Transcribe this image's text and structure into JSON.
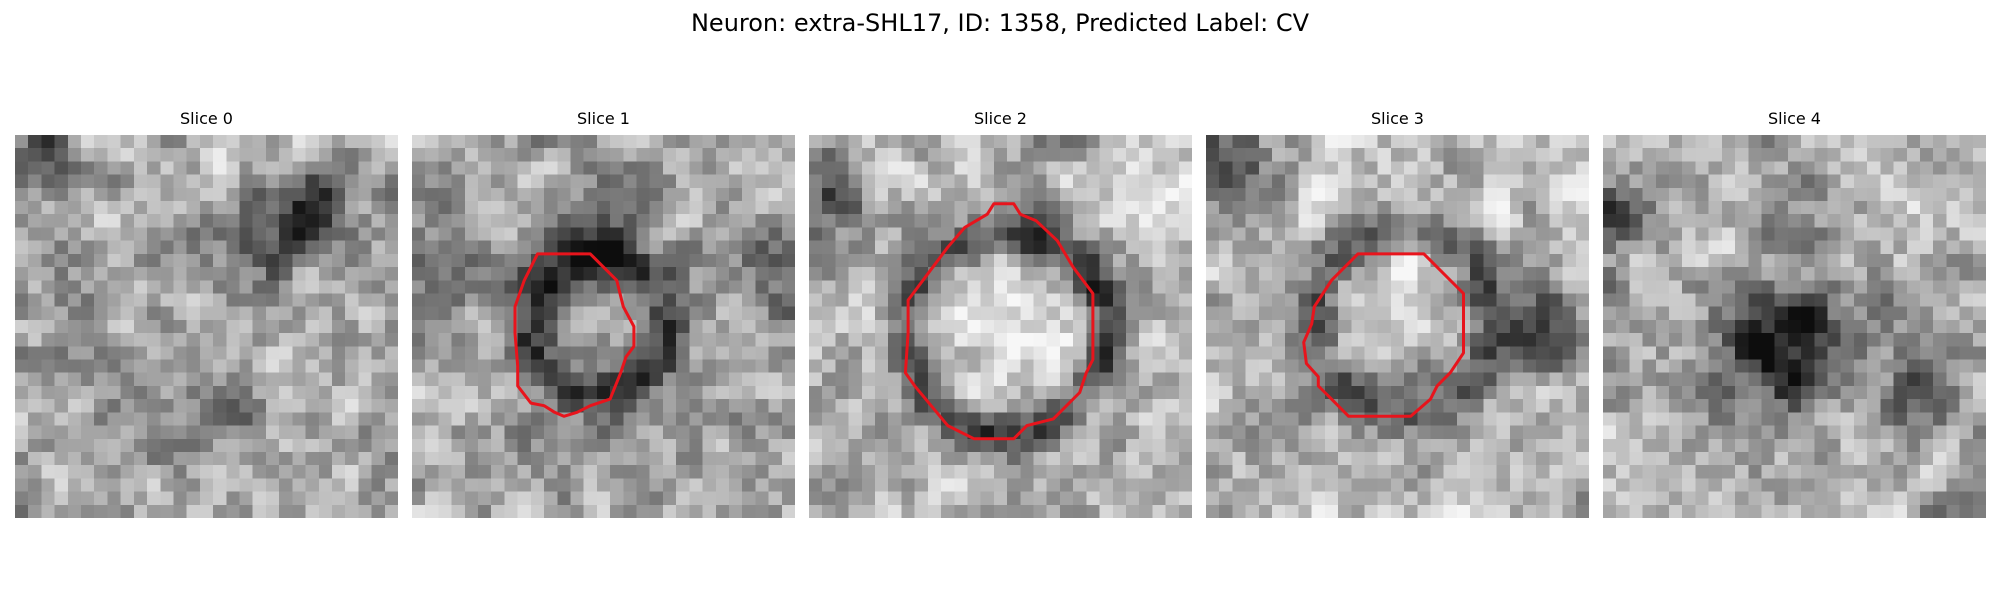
{
  "figure": {
    "title": "Neuron: extra-SHL17, ID: 1358, Predicted Label: CV"
  },
  "panels": [
    {
      "title": "Slice 0",
      "has_contour": false,
      "seed": 11
    },
    {
      "title": "Slice 1",
      "has_contour": true,
      "seed": 23
    },
    {
      "title": "Slice 2",
      "has_contour": true,
      "seed": 37
    },
    {
      "title": "Slice 3",
      "has_contour": true,
      "seed": 41
    },
    {
      "title": "Slice 4",
      "has_contour": false,
      "seed": 53
    }
  ],
  "colors": {
    "contour": "#e8141c",
    "background": "#ffffff",
    "text": "#000000"
  }
}
